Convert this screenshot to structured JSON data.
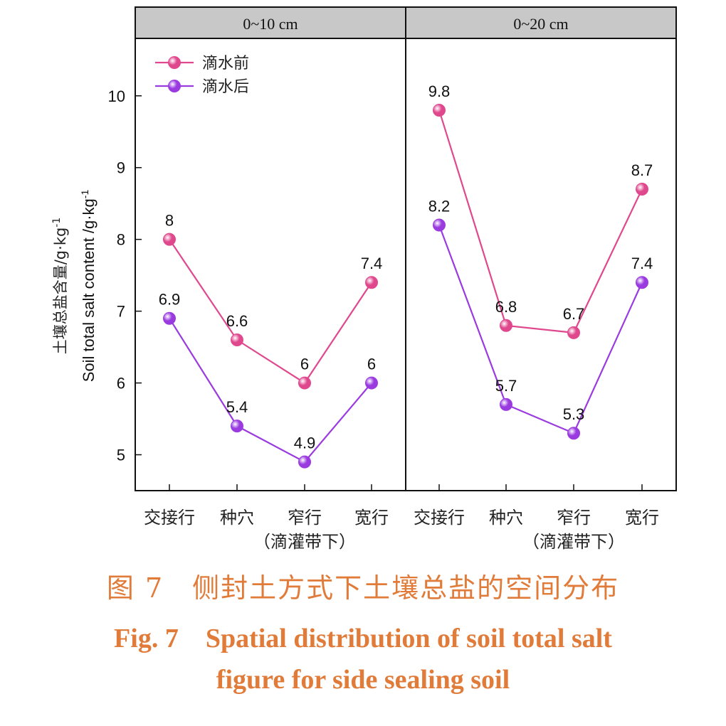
{
  "chart_data": {
    "type": "line",
    "ylabel_zh": "土壤总盐含量/g·kg",
    "ylabel_en": "Soil total salt content /g·kg",
    "ylabel_sup": "-1",
    "ylim": [
      4.5,
      10.8
    ],
    "yticks": [
      5,
      6,
      7,
      8,
      9,
      10
    ],
    "grid": false,
    "legend_position": "top-left",
    "categories": [
      "交接行",
      "种穴",
      "窄行",
      "宽行"
    ],
    "subnote": "（滴灌带下）",
    "series_names": [
      "滴水前",
      "滴水后"
    ],
    "series_colors": [
      "#e0488e",
      "#9a3be0"
    ],
    "panels": [
      {
        "label": "0~10 cm",
        "series": [
          {
            "name": "滴水前",
            "values": [
              8,
              6.6,
              6,
              7.4
            ],
            "labels": [
              "8",
              "6.6",
              "6",
              "7.4"
            ]
          },
          {
            "name": "滴水后",
            "values": [
              6.9,
              5.4,
              4.9,
              6
            ],
            "labels": [
              "6.9",
              "5.4",
              "4.9",
              "6"
            ]
          }
        ]
      },
      {
        "label": "0~20 cm",
        "series": [
          {
            "name": "滴水前",
            "values": [
              9.8,
              6.8,
              6.7,
              8.7
            ],
            "labels": [
              "9.8",
              "6.8",
              "6.7",
              "8.7"
            ]
          },
          {
            "name": "滴水后",
            "values": [
              8.2,
              5.7,
              5.3,
              7.4
            ],
            "labels": [
              "8.2",
              "5.7",
              "5.3",
              "7.4"
            ]
          }
        ]
      }
    ]
  },
  "caption": {
    "zh": "图 7　侧封土方式下土壤总盐的空间分布",
    "en_line1": "Fig. 7　Spatial distribution of soil total salt",
    "en_line2": "figure for side sealing soil"
  }
}
